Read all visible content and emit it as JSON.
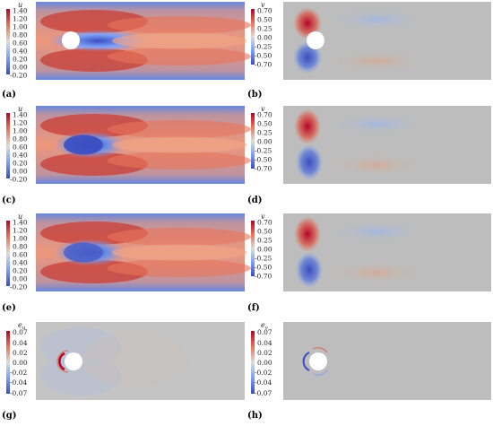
{
  "figure": {
    "panels": [
      {
        "id": "a",
        "caption": "(a)",
        "variable": "u",
        "ticks": [
          "1.40",
          "1.20",
          "1.00",
          "0.80",
          "0.60",
          "0.40",
          "0.20",
          "0.00",
          "-0.20"
        ],
        "colormap": "coolwarm",
        "cylinder_shown": true,
        "field_type": "streamwise"
      },
      {
        "id": "b",
        "caption": "(b)",
        "variable": "v",
        "ticks": [
          "0.70",
          "0.50",
          "0.25",
          "0.00",
          "-0.25",
          "-0.50",
          "-0.70"
        ],
        "colormap": "coolwarm",
        "cylinder_shown": true,
        "field_type": "transverse"
      },
      {
        "id": "c",
        "caption": "(c)",
        "variable": "u",
        "ticks": [
          "1.40",
          "1.20",
          "1.00",
          "0.80",
          "0.60",
          "0.40",
          "0.20",
          "0.00",
          "-0.20"
        ],
        "colormap": "coolwarm",
        "cylinder_shown": false,
        "field_type": "streamwise"
      },
      {
        "id": "d",
        "caption": "(d)",
        "variable": "v",
        "ticks": [
          "0.70",
          "0.50",
          "0.25",
          "0.00",
          "-0.25",
          "-0.50",
          "-0.70"
        ],
        "colormap": "coolwarm",
        "cylinder_shown": false,
        "field_type": "transverse"
      },
      {
        "id": "e",
        "caption": "(e)",
        "variable": "u",
        "ticks": [
          "1.40",
          "1.20",
          "1.00",
          "0.80",
          "0.60",
          "0.40",
          "0.20",
          "0.00",
          "-0.20"
        ],
        "colormap": "coolwarm",
        "cylinder_shown": false,
        "field_type": "streamwise"
      },
      {
        "id": "f",
        "caption": "(f)",
        "variable": "v",
        "ticks": [
          "0.70",
          "0.50",
          "0.25",
          "0.00",
          "-0.25",
          "-0.50",
          "-0.70"
        ],
        "colormap": "coolwarm",
        "cylinder_shown": false,
        "field_type": "transverse"
      },
      {
        "id": "g",
        "caption": "(g)",
        "variable": "e",
        "variable_sub": "u",
        "ticks": [
          "0.07",
          "0.04",
          "0.02",
          "0.00",
          "-0.02",
          "-0.04",
          "-0.07"
        ],
        "colormap": "coolwarm",
        "cylinder_shown": true,
        "field_type": "error"
      },
      {
        "id": "h",
        "caption": "(h)",
        "variable": "e",
        "variable_sub": "v",
        "ticks": [
          "0.07",
          "0.04",
          "0.02",
          "0.00",
          "-0.02",
          "-0.04",
          "-0.07"
        ],
        "colormap": "coolwarm",
        "cylinder_shown": true,
        "field_type": "error"
      }
    ],
    "colors": {
      "cold": "#3b4cc0",
      "neutral": "#bdbdbd",
      "warm": "#b40426",
      "free_stream": "#e0654f",
      "cylinder": "#ffffff"
    }
  }
}
